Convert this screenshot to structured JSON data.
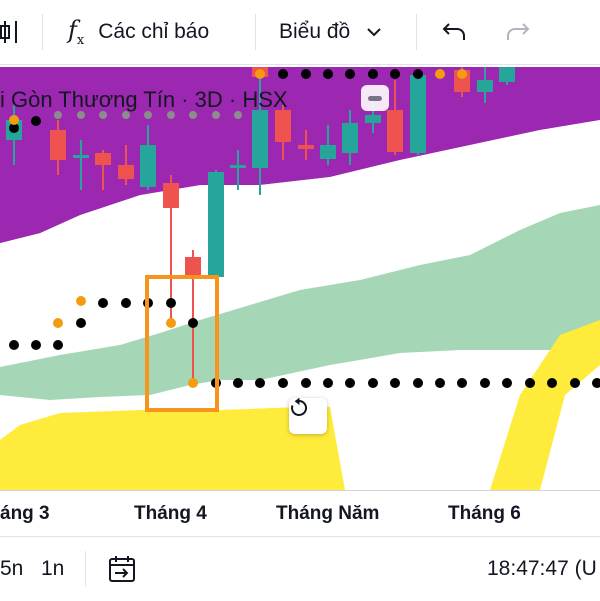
{
  "toolbar": {
    "indicators_label": "Các chỉ báo",
    "chart_type_label": "Biểu đồ"
  },
  "chart": {
    "symbol_title": "i Gòn Thương Tín · 3D · HSX",
    "time_ticks": [
      "áng 3",
      "Tháng 4",
      "Tháng Năm",
      "Tháng 6"
    ]
  },
  "bottom": {
    "range_5n": "5n",
    "range_1n": "1n",
    "clock": "18:47:47 (U"
  },
  "colors": {
    "bull": "#26a69a",
    "bear": "#ef5350",
    "cloud_purple": "#9c27b0",
    "cloud_green": "#a5d6b5",
    "cloud_yellow": "#ffeb3b",
    "dots_black": "#000000",
    "dots_orange": "#f39c12",
    "highlight_box": "#f7941d"
  }
}
